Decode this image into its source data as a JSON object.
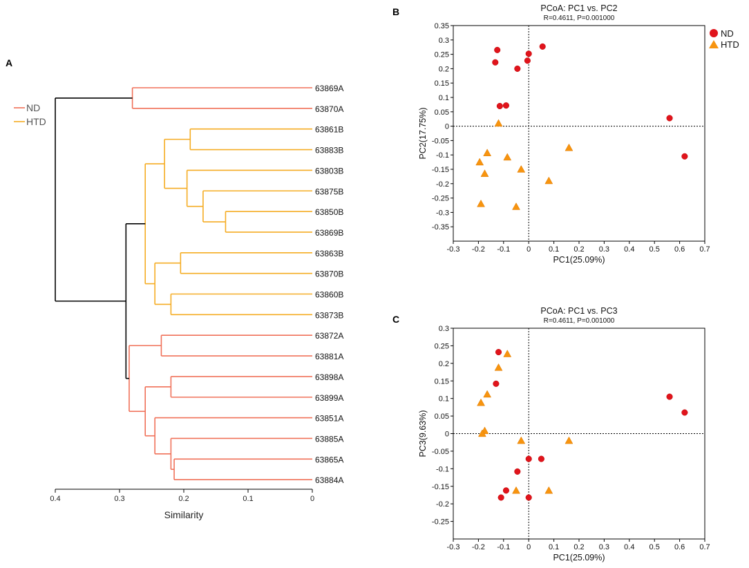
{
  "colors": {
    "nd": "#f07058",
    "htd": "#f5ac22",
    "root": "#000000",
    "nd_marker": "#e0141c",
    "htd_marker": "#f7940f"
  },
  "chart_data": [
    {
      "panel": "A",
      "type": "dendrogram",
      "xlabel": "Similarity",
      "xlim": [
        0.4,
        0
      ],
      "xticks": [
        0.4,
        0.3,
        0.2,
        0.1,
        0
      ],
      "xtick_labels": [
        "0.4",
        "0.3",
        "0.2",
        "0.1",
        "0"
      ],
      "legend": [
        {
          "label": "ND",
          "group": "ND"
        },
        {
          "label": "HTD",
          "group": "HTD"
        }
      ],
      "leaves": [
        "63869A",
        "63870A",
        "63861B",
        "63883B",
        "63803B",
        "63875B",
        "63850B",
        "63869B",
        "63863B",
        "63870B",
        "63860B",
        "63873B",
        "63872A",
        "63881A",
        "63898A",
        "63899A",
        "63851A",
        "63885A",
        "63865A",
        "63884A"
      ],
      "nodes": [
        {
          "id": "n1",
          "height": 0.28,
          "children": [
            "63869A",
            "63870A"
          ],
          "group": "ND"
        },
        {
          "id": "n2",
          "height": 0.19,
          "children": [
            "63861B",
            "63883B"
          ],
          "group": "HTD"
        },
        {
          "id": "n3",
          "height": 0.135,
          "children": [
            "63850B",
            "63869B"
          ],
          "group": "HTD"
        },
        {
          "id": "n4",
          "height": 0.17,
          "children": [
            "63875B",
            "n3"
          ],
          "group": "HTD"
        },
        {
          "id": "n5",
          "height": 0.195,
          "children": [
            "63803B",
            "n4"
          ],
          "group": "HTD"
        },
        {
          "id": "n6",
          "height": 0.23,
          "children": [
            "n2",
            "n5"
          ],
          "group": "HTD"
        },
        {
          "id": "n7",
          "height": 0.205,
          "children": [
            "63863B",
            "63870B"
          ],
          "group": "HTD"
        },
        {
          "id": "n8",
          "height": 0.22,
          "children": [
            "63860B",
            "63873B"
          ],
          "group": "HTD"
        },
        {
          "id": "n9",
          "height": 0.245,
          "children": [
            "n7",
            "n8"
          ],
          "group": "HTD"
        },
        {
          "id": "n10",
          "height": 0.26,
          "children": [
            "n6",
            "n9"
          ],
          "group": "HTD"
        },
        {
          "id": "n11",
          "height": 0.235,
          "children": [
            "63872A",
            "63881A"
          ],
          "group": "ND"
        },
        {
          "id": "n12",
          "height": 0.22,
          "children": [
            "63898A",
            "63899A"
          ],
          "group": "ND"
        },
        {
          "id": "n13",
          "height": 0.215,
          "children": [
            "63865A",
            "63884A"
          ],
          "group": "ND"
        },
        {
          "id": "n14",
          "height": 0.22,
          "children": [
            "63885A",
            "n13"
          ],
          "group": "ND"
        },
        {
          "id": "n15",
          "height": 0.245,
          "children": [
            "63851A",
            "n14"
          ],
          "group": "ND"
        },
        {
          "id": "n16",
          "height": 0.26,
          "children": [
            "n12",
            "n15"
          ],
          "group": "ND"
        },
        {
          "id": "n17",
          "height": 0.285,
          "children": [
            "n11",
            "n16"
          ],
          "group": "ND"
        },
        {
          "id": "n18",
          "height": 0.29,
          "children": [
            "n10",
            "n17"
          ],
          "group": "root"
        },
        {
          "id": "n19",
          "height": 0.4,
          "children": [
            "n1",
            "n18"
          ],
          "group": "root"
        }
      ]
    },
    {
      "panel": "B",
      "type": "scatter",
      "title": "PCoA: PC1 vs. PC2",
      "subtitle": "R=0.4611, P=0.001000",
      "xlabel": "PC1(25.09%)",
      "ylabel": "PC2(17.75%)",
      "xlim": [
        -0.3,
        0.7
      ],
      "ylim": [
        -0.4,
        0.35
      ],
      "xticks": [
        -0.3,
        -0.2,
        -0.1,
        0,
        0.1,
        0.2,
        0.3,
        0.4,
        0.5,
        0.6,
        0.7
      ],
      "xtick_labels": [
        "-0.3",
        "-0.2",
        "-0.1",
        "0",
        "0.1",
        "0.2",
        "0.3",
        "0.4",
        "0.5",
        "0.6",
        "0.7"
      ],
      "yticks": [
        0.35,
        0.3,
        0.25,
        0.2,
        0.15,
        0.1,
        0.05,
        0,
        -0.05,
        -0.1,
        -0.15,
        -0.2,
        -0.25,
        -0.3,
        -0.35
      ],
      "ytick_labels": [
        "0.35",
        "0.3",
        "0.25",
        "0.2",
        "0.15",
        "0.1",
        "0.05",
        "0",
        "-0.05",
        "-0.1",
        "-0.15",
        "-0.2",
        "-0.25",
        "-0.3",
        "-0.35"
      ],
      "legend": [
        "ND",
        "HTD"
      ],
      "series": [
        {
          "name": "ND",
          "marker": "circle",
          "points": [
            [
              -0.125,
              0.265
            ],
            [
              0.055,
              0.277
            ],
            [
              0,
              0.252
            ],
            [
              -0.005,
              0.228
            ],
            [
              -0.133,
              0.222
            ],
            [
              -0.045,
              0.2
            ],
            [
              -0.115,
              0.07
            ],
            [
              -0.09,
              0.072
            ],
            [
              0.56,
              0.028
            ],
            [
              0.62,
              -0.105
            ]
          ]
        },
        {
          "name": "HTD",
          "marker": "triangle",
          "points": [
            [
              -0.12,
              0.01
            ],
            [
              -0.165,
              -0.093
            ],
            [
              -0.085,
              -0.108
            ],
            [
              -0.195,
              -0.125
            ],
            [
              -0.175,
              -0.165
            ],
            [
              -0.03,
              -0.15
            ],
            [
              0.16,
              -0.075
            ],
            [
              0.08,
              -0.19
            ],
            [
              -0.19,
              -0.27
            ],
            [
              -0.05,
              -0.28
            ]
          ]
        }
      ]
    },
    {
      "panel": "C",
      "type": "scatter",
      "title": "PCoA: PC1 vs. PC3",
      "subtitle": "R=0.4611, P=0.001000",
      "xlabel": "PC1(25.09%)",
      "ylabel": "PC3(9.63%)",
      "xlim": [
        -0.3,
        0.7
      ],
      "ylim": [
        -0.3,
        0.3
      ],
      "xticks": [
        -0.3,
        -0.2,
        -0.1,
        0,
        0.1,
        0.2,
        0.3,
        0.4,
        0.5,
        0.6,
        0.7
      ],
      "xtick_labels": [
        "-0.3",
        "-0.2",
        "-0.1",
        "0",
        "0.1",
        "0.2",
        "0.3",
        "0.4",
        "0.5",
        "0.6",
        "0.7"
      ],
      "yticks": [
        0.3,
        0.25,
        0.2,
        0.15,
        0.1,
        0.05,
        0,
        -0.05,
        -0.1,
        -0.15,
        -0.2,
        -0.25
      ],
      "ytick_labels": [
        "0.3",
        "0.25",
        "0.2",
        "0.15",
        "0.1",
        "0.05",
        "0",
        "-0.05",
        "-0.1",
        "-0.15",
        "-0.2",
        "-0.25"
      ],
      "series": [
        {
          "name": "ND",
          "marker": "circle",
          "points": [
            [
              -0.12,
              0.232
            ],
            [
              -0.13,
              0.142
            ],
            [
              0.56,
              0.105
            ],
            [
              0.62,
              0.06
            ],
            [
              0,
              -0.072
            ],
            [
              0.05,
              -0.072
            ],
            [
              -0.045,
              -0.108
            ],
            [
              -0.09,
              -0.162
            ],
            [
              -0.11,
              -0.182
            ],
            [
              0,
              -0.182
            ]
          ]
        },
        {
          "name": "HTD",
          "marker": "triangle",
          "points": [
            [
              -0.085,
              0.227
            ],
            [
              -0.12,
              0.188
            ],
            [
              -0.165,
              0.112
            ],
            [
              -0.19,
              0.088
            ],
            [
              -0.175,
              0.008
            ],
            [
              -0.185,
              0
            ],
            [
              -0.03,
              -0.02
            ],
            [
              0.16,
              -0.02
            ],
            [
              -0.05,
              -0.162
            ],
            [
              0.08,
              -0.162
            ]
          ]
        }
      ]
    }
  ],
  "panel_labels": {
    "a": "A",
    "b": "B",
    "c": "C"
  }
}
